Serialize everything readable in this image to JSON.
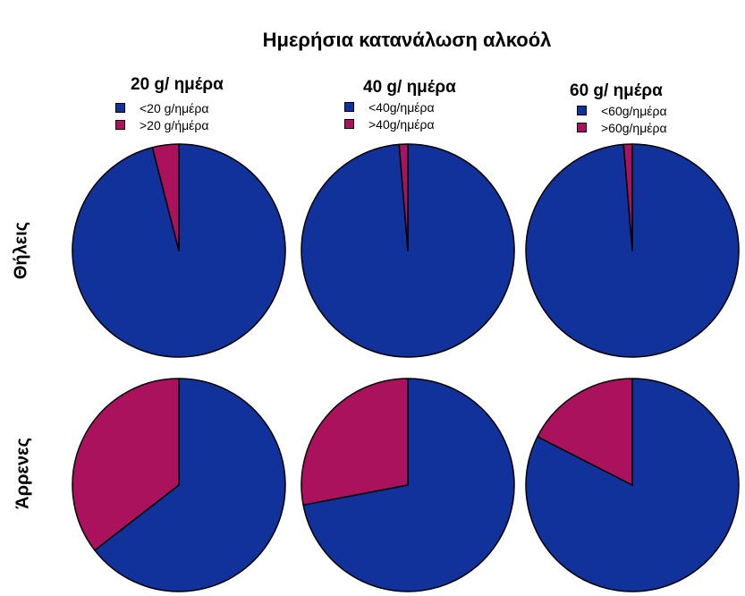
{
  "chart_data": {
    "type": "pie",
    "title": "Ημερήσια κατανάλωση αλκοόλ",
    "colors": {
      "below": "#11329b",
      "above": "#ab125e"
    },
    "columns": [
      {
        "title": "20 g/ ημέρα",
        "legend": [
          "<20 g/ημέρα",
          ">20 g/ήμέρα"
        ]
      },
      {
        "title": "40 g/ ημέρα",
        "legend": [
          "<40g/ημέρα",
          ">40g/ημέρα"
        ]
      },
      {
        "title": "60 g/ ημέρα",
        "legend": [
          "<60g/ημέρα",
          ">60g/ημέρα"
        ]
      }
    ],
    "rows": [
      {
        "label": "Θήλεις",
        "above_share": [
          4,
          1.3,
          1.3
        ]
      },
      {
        "label": "Άρρενες",
        "above_share": [
          35.5,
          28,
          17.5
        ]
      }
    ]
  }
}
